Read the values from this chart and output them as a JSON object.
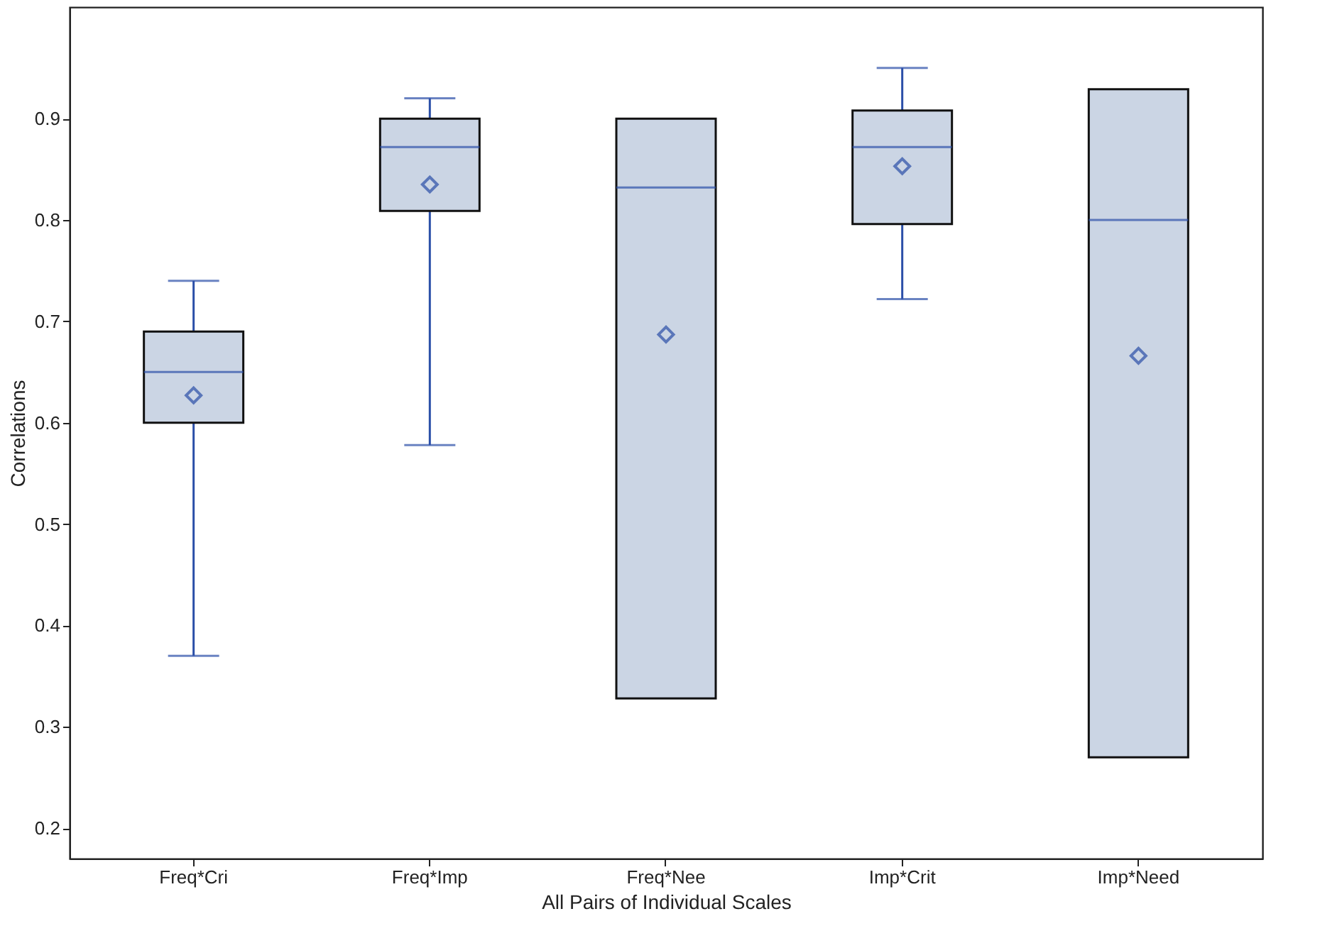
{
  "chart_data": {
    "type": "box",
    "xlabel": "All Pairs of Individual Scales",
    "ylabel": "Correlations",
    "categories": [
      "Freq*Cri",
      "Freq*Imp",
      "Freq*Nee",
      "Imp*Crit",
      "Imp*Need"
    ],
    "series": [
      {
        "color": "#cbd5e4",
        "boxes": [
          {
            "low": 0.37,
            "q1": 0.6,
            "median": 0.65,
            "q3": 0.69,
            "high": 0.74,
            "mean": 0.627
          },
          {
            "low": 0.578,
            "q1": 0.809,
            "median": 0.872,
            "q3": 0.9,
            "high": 0.92,
            "mean": 0.835
          },
          {
            "low": 0.328,
            "q1": 0.328,
            "median": 0.832,
            "q3": 0.9,
            "high": 0.9,
            "mean": 0.687
          },
          {
            "low": 0.722,
            "q1": 0.796,
            "median": 0.872,
            "q3": 0.908,
            "high": 0.95,
            "mean": 0.853
          },
          {
            "low": 0.27,
            "q1": 0.27,
            "median": 0.8,
            "q3": 0.929,
            "high": 0.929,
            "mean": 0.666
          }
        ]
      }
    ],
    "ylim": [
      0.17,
      1.01
    ],
    "yticks": [
      0.2,
      0.3,
      0.4,
      0.5,
      0.6,
      0.7,
      0.8,
      0.9
    ],
    "grid": false,
    "marker": "diamond"
  }
}
